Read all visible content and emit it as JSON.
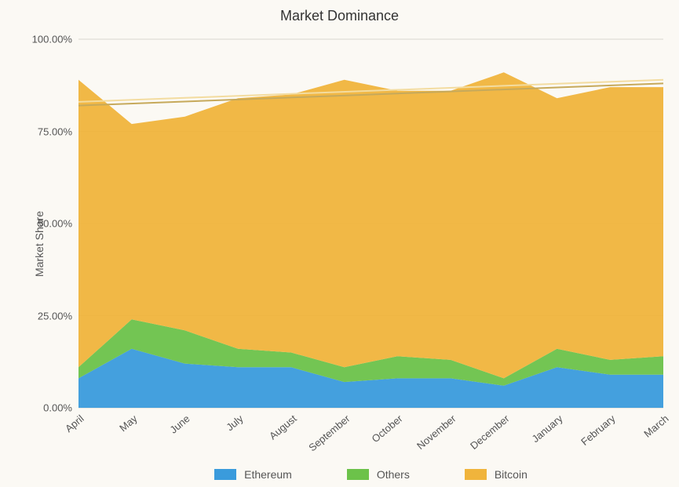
{
  "chart": {
    "type": "stacked-area",
    "title": "Market Dominance",
    "ylabel": "Market Share",
    "title_fontsize": 18,
    "label_fontsize": 14,
    "tick_fontsize": 13,
    "background_color": "#fbf9f4",
    "grid_color": "#d9d6cf",
    "ylim": [
      0,
      100
    ],
    "ytick_step": 25,
    "ytick_format_suffix": "%",
    "ytick_format_decimals": 2,
    "xtick_rotation_deg": -40,
    "categories": [
      "April",
      "May",
      "June",
      "July",
      "August",
      "September",
      "October",
      "November",
      "December",
      "January",
      "February",
      "March"
    ],
    "series": [
      {
        "key": "ethereum",
        "label": "Ethereum",
        "color": "#3a9bdc",
        "values": [
          8,
          16,
          12,
          11,
          11,
          7,
          8,
          8,
          6,
          11,
          9,
          9
        ]
      },
      {
        "key": "others",
        "label": "Others",
        "color": "#6cc24a",
        "values": [
          3,
          8,
          9,
          5,
          4,
          4,
          6,
          5,
          2,
          5,
          4,
          5
        ]
      },
      {
        "key": "bitcoin",
        "label": "Bitcoin",
        "color": "#f0b43c",
        "values": [
          78,
          53,
          58,
          68,
          70,
          78,
          72,
          73,
          83,
          68,
          74,
          73
        ]
      }
    ],
    "trendlines": [
      {
        "color": "#c6a95b",
        "width": 2,
        "start_y": 82,
        "end_y": 88
      },
      {
        "color": "#f3dca0",
        "width": 2,
        "start_y": 83,
        "end_y": 89
      }
    ],
    "legend_order": [
      "ethereum",
      "others",
      "bitcoin"
    ]
  }
}
